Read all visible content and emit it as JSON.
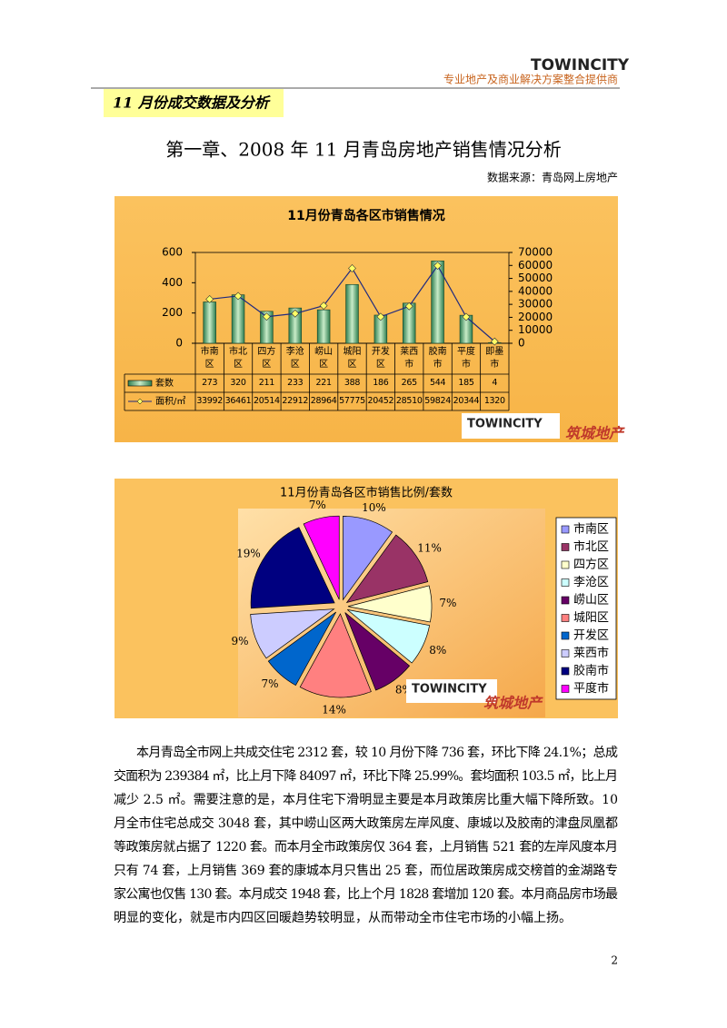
{
  "logo": "TOWINCITY",
  "header": {
    "tagline": "专业地产及商业解决方案整合提供商"
  },
  "section_tag": "11 月份成交数据及分析",
  "heading": "第一章、2008 年 11 月青岛房地产销售情况分析",
  "source": "数据来源：青岛网上房地产",
  "watermark": "筑城地产",
  "charts": [
    {
      "type": "bar-line",
      "title": "11月份青岛各区市销售情况",
      "categories": [
        "市南区",
        "市北区",
        "四方区",
        "李沧区",
        "崂山区",
        "城阳区",
        "开发区",
        "莱西市",
        "胶南市",
        "平度市",
        "即墨市"
      ],
      "series": [
        {
          "name": "套数",
          "type": "bar",
          "color": "#2e7d4f",
          "values": [
            273,
            320,
            211,
            233,
            221,
            388,
            186,
            265,
            544,
            185,
            4
          ]
        },
        {
          "name": "面积/㎡",
          "type": "line",
          "axis": "y2",
          "color": "#1f2a80",
          "marker_color": "#ffff66",
          "values": [
            33992,
            36461,
            20514,
            22912,
            28964,
            57775,
            20452,
            28510,
            59824,
            20344,
            1320
          ]
        }
      ],
      "ylim": [
        0,
        600
      ],
      "yticks": [
        0,
        200,
        400,
        600
      ],
      "y2lim": [
        0,
        70000
      ],
      "y2ticks": [
        0,
        10000,
        20000,
        30000,
        40000,
        50000,
        60000,
        70000
      ],
      "data_table": true
    },
    {
      "type": "pie",
      "title": "11月份青岛各区市销售比例/套数",
      "categories": [
        "市南区",
        "市北区",
        "四方区",
        "李沧区",
        "崂山区",
        "城阳区",
        "开发区",
        "莱西市",
        "胶南市",
        "平度市"
      ],
      "values": [
        10,
        11,
        7,
        8,
        8,
        14,
        7,
        9,
        19,
        7
      ],
      "value_labels": [
        "10%",
        "11%",
        "7%",
        "8%",
        "8%",
        "14%",
        "7%",
        "9%",
        "19%",
        "7%"
      ],
      "colors": [
        "#9999ff",
        "#993366",
        "#ffffcc",
        "#ccffff",
        "#660066",
        "#ff8080",
        "#0066cc",
        "#ccccff",
        "#000080",
        "#ff00ff"
      ],
      "legend": "right"
    }
  ],
  "paragraph": [
    "本月青岛全市网上共成交住宅 2312 套，较 10 月份下降 736 套，环比下降 24.1%；总成",
    "交面积为 239384 ㎡，比上月下降 84097 ㎡，环比下降 25.99%。套均面积 103.5 ㎡，比上月",
    "减少 2.5 ㎡。需要注意的是，本月住宅下滑明显主要是本月政策房比重大幅下降所致。10",
    "月全市住宅总成交 3048 套，其中崂山区两大政策房左岸风度、康城以及胶南的津盘凤凰都",
    "等政策房就占据了 1220 套。而本月全市政策房仅 364 套，上月销售 521 套的左岸风度本月",
    "只有 74 套，上月销售 369 套的康城本月只售出 25 套，而位居政策房成交榜首的金湖路专",
    "家公寓也仅售 130 套。本月成交 1948 套，比上个月 1828 套增加 120 套。本月商品房市场最",
    "明显的变化，就是市内四区回暖趋势较明显，从而带动全市住宅市场的小幅上扬。"
  ],
  "page_number": "2"
}
